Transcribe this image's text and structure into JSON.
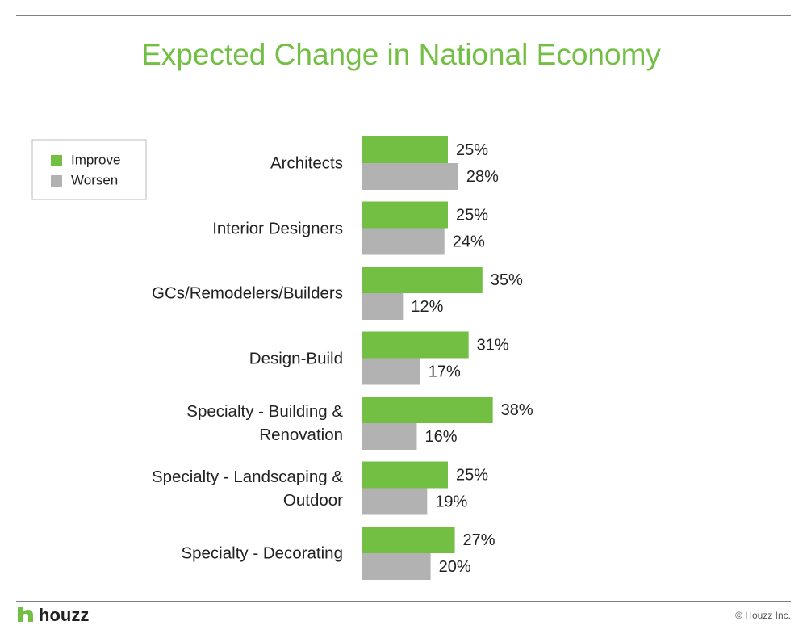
{
  "chart_data": {
    "type": "bar",
    "orientation": "horizontal",
    "title": "Expected Change in National Economy",
    "categories": [
      "Architects",
      "Interior Designers",
      "GCs/Remodelers/Builders",
      "Design-Build",
      "Specialty - Building & Renovation",
      "Specialty - Landscaping & Outdoor",
      "Specialty - Decorating"
    ],
    "series": [
      {
        "name": "Improve",
        "color": "#72bf44",
        "values": [
          25,
          25,
          35,
          31,
          38,
          25,
          27
        ],
        "value_labels": [
          "25%",
          "25%",
          "35%",
          "31%",
          "38%",
          "25%",
          "27%"
        ]
      },
      {
        "name": "Worsen",
        "color": "#b2b2b2",
        "values": [
          28,
          24,
          12,
          17,
          16,
          19,
          20
        ],
        "value_labels": [
          "28%",
          "24%",
          "12%",
          "17%",
          "16%",
          "19%",
          "20%"
        ]
      }
    ],
    "legend": "top-left"
  },
  "footer": {
    "logo": "houzz",
    "copyright": "© Houzz Inc."
  }
}
